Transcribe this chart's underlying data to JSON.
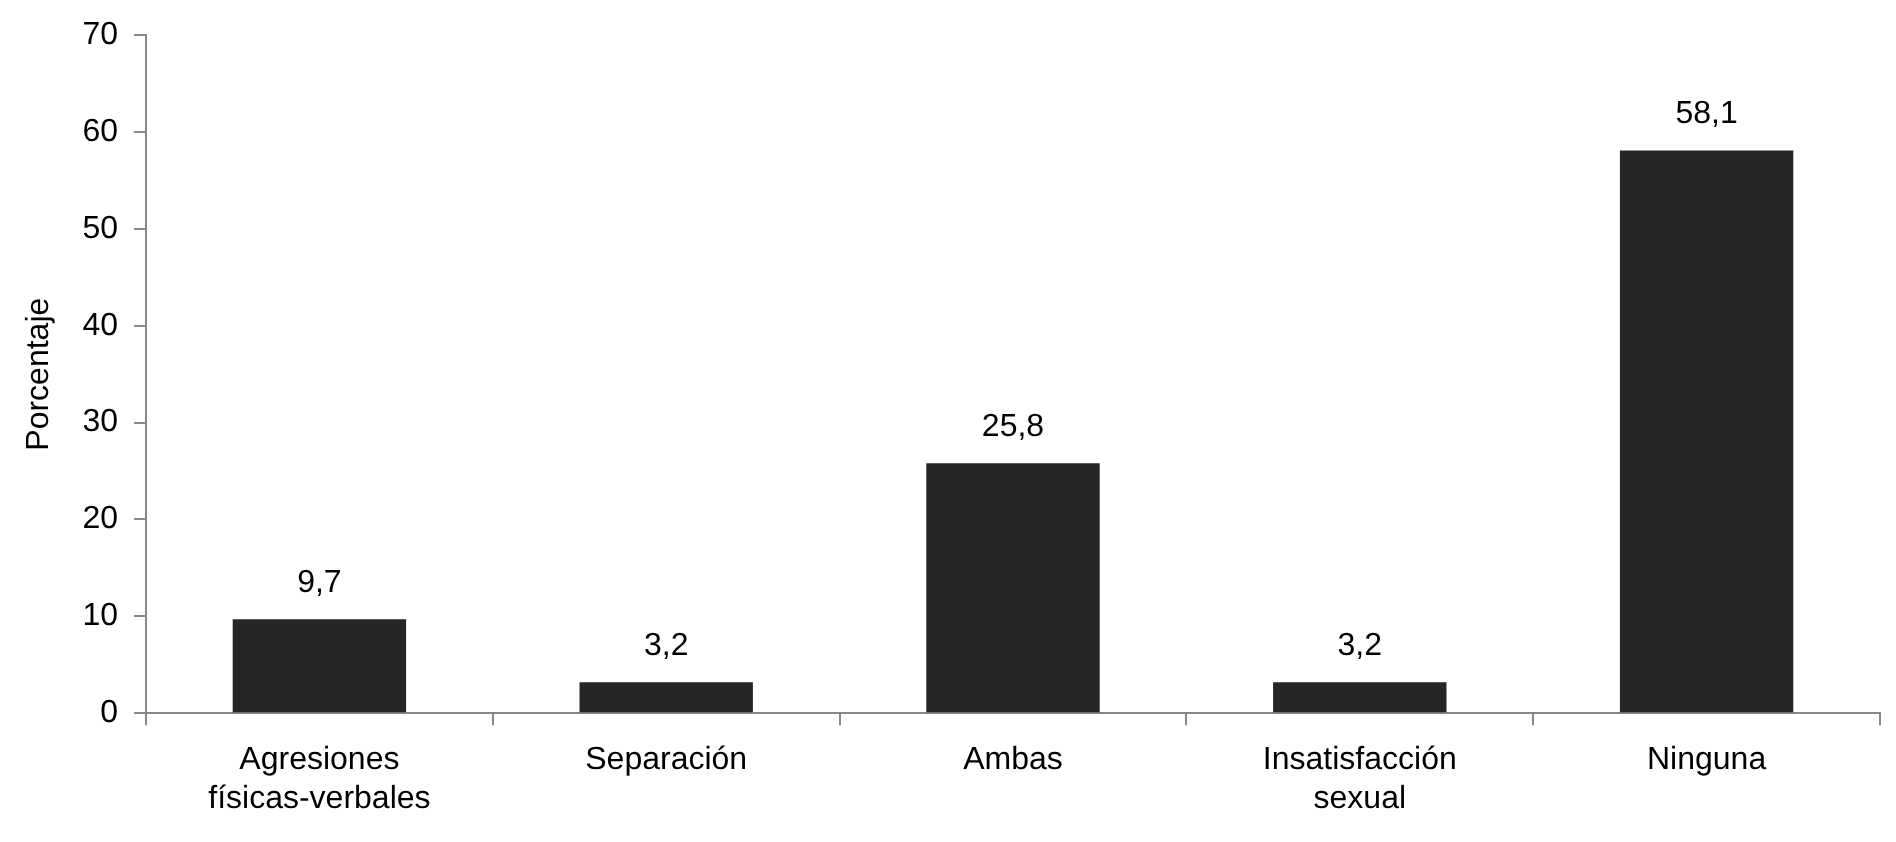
{
  "chart_data": {
    "type": "bar",
    "ylabel": "Porcentaje",
    "categories": [
      "Agresiones físicas-verbales",
      "Separación",
      "Ambas",
      "Insatisfacción sexual",
      "Ninguna"
    ],
    "values": [
      9.7,
      3.2,
      25.8,
      3.2,
      58.1
    ],
    "value_labels": [
      "9,7",
      "3,2",
      "25,8",
      "3,2",
      "58,1"
    ],
    "color": "#262626",
    "ylim": [
      0,
      70
    ],
    "yticks": [
      0,
      10,
      20,
      30,
      40,
      50,
      60,
      70
    ],
    "grid": false,
    "legend": false
  }
}
